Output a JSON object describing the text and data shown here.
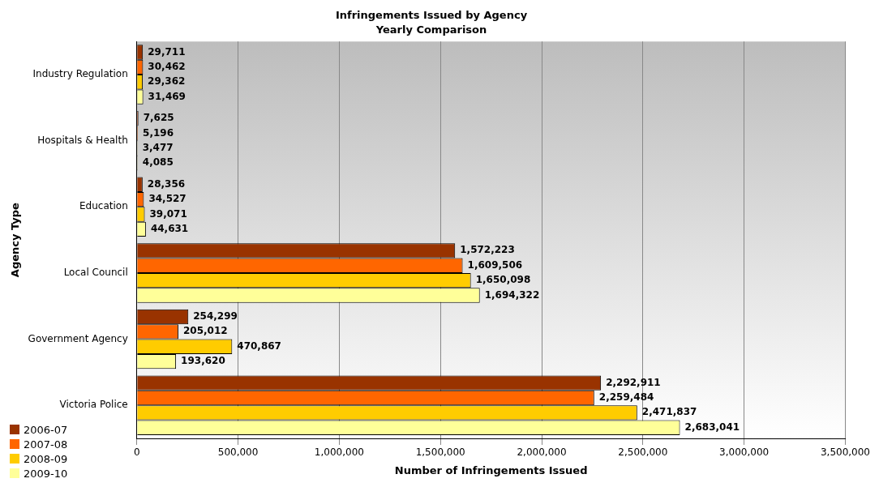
{
  "chart_data": {
    "type": "bar",
    "orientation": "horizontal",
    "title": "Infringements Issued by Agency",
    "subtitle": "Yearly Comparison",
    "xlabel": "Number of Infringements Issued",
    "ylabel": "Agency Type",
    "categories": [
      "Industry Regulation",
      "Hospitals & Health",
      "Education",
      "Local Council",
      "Government Agency",
      "Victoria Police"
    ],
    "series": [
      {
        "name": "2006-07",
        "color": "#993300",
        "values": [
          29711,
          7625,
          28356,
          1572223,
          254299,
          2292911
        ],
        "value_labels": [
          "29,711",
          "7,625",
          "28,356",
          "1,572,223",
          "254,299",
          "2,292,911"
        ]
      },
      {
        "name": "2007-08",
        "color": "#ff6600",
        "values": [
          30462,
          5196,
          34527,
          1609506,
          205012,
          2259484
        ],
        "value_labels": [
          "30,462",
          "5,196",
          "34,527",
          "1,609,506",
          "205,012",
          "2,259,484"
        ]
      },
      {
        "name": "2008-09",
        "color": "#ffcc00",
        "values": [
          29362,
          3477,
          39071,
          1650098,
          470867,
          2471837
        ],
        "value_labels": [
          "29,362",
          "3,477",
          "39,071",
          "1,650,098",
          "470,867",
          "2,471,837"
        ]
      },
      {
        "name": "2009-10",
        "color": "#ffff99",
        "values": [
          31469,
          4085,
          44631,
          1694322,
          193620,
          2683041
        ],
        "value_labels": [
          "31,469",
          "4,085",
          "44,631",
          "1,694,322",
          "193,620",
          "2,683,041"
        ]
      }
    ],
    "xlim": [
      0,
      3500000
    ],
    "xticks": [
      0,
      {
        "value": 500000,
        "label": "500,000"
      },
      {
        "value": 1000000,
        "label": "1,000,000"
      },
      {
        "value": 1500000,
        "label": "1,500,000"
      },
      {
        "value": 2000000,
        "label": "2,000,000"
      },
      {
        "value": 2500000,
        "label": "2,500,000"
      },
      {
        "value": 3000000,
        "label": "3,000,000"
      },
      {
        "value": 3500000,
        "label": "3,500,000"
      }
    ],
    "grid": "x",
    "legend": "bottom left"
  }
}
